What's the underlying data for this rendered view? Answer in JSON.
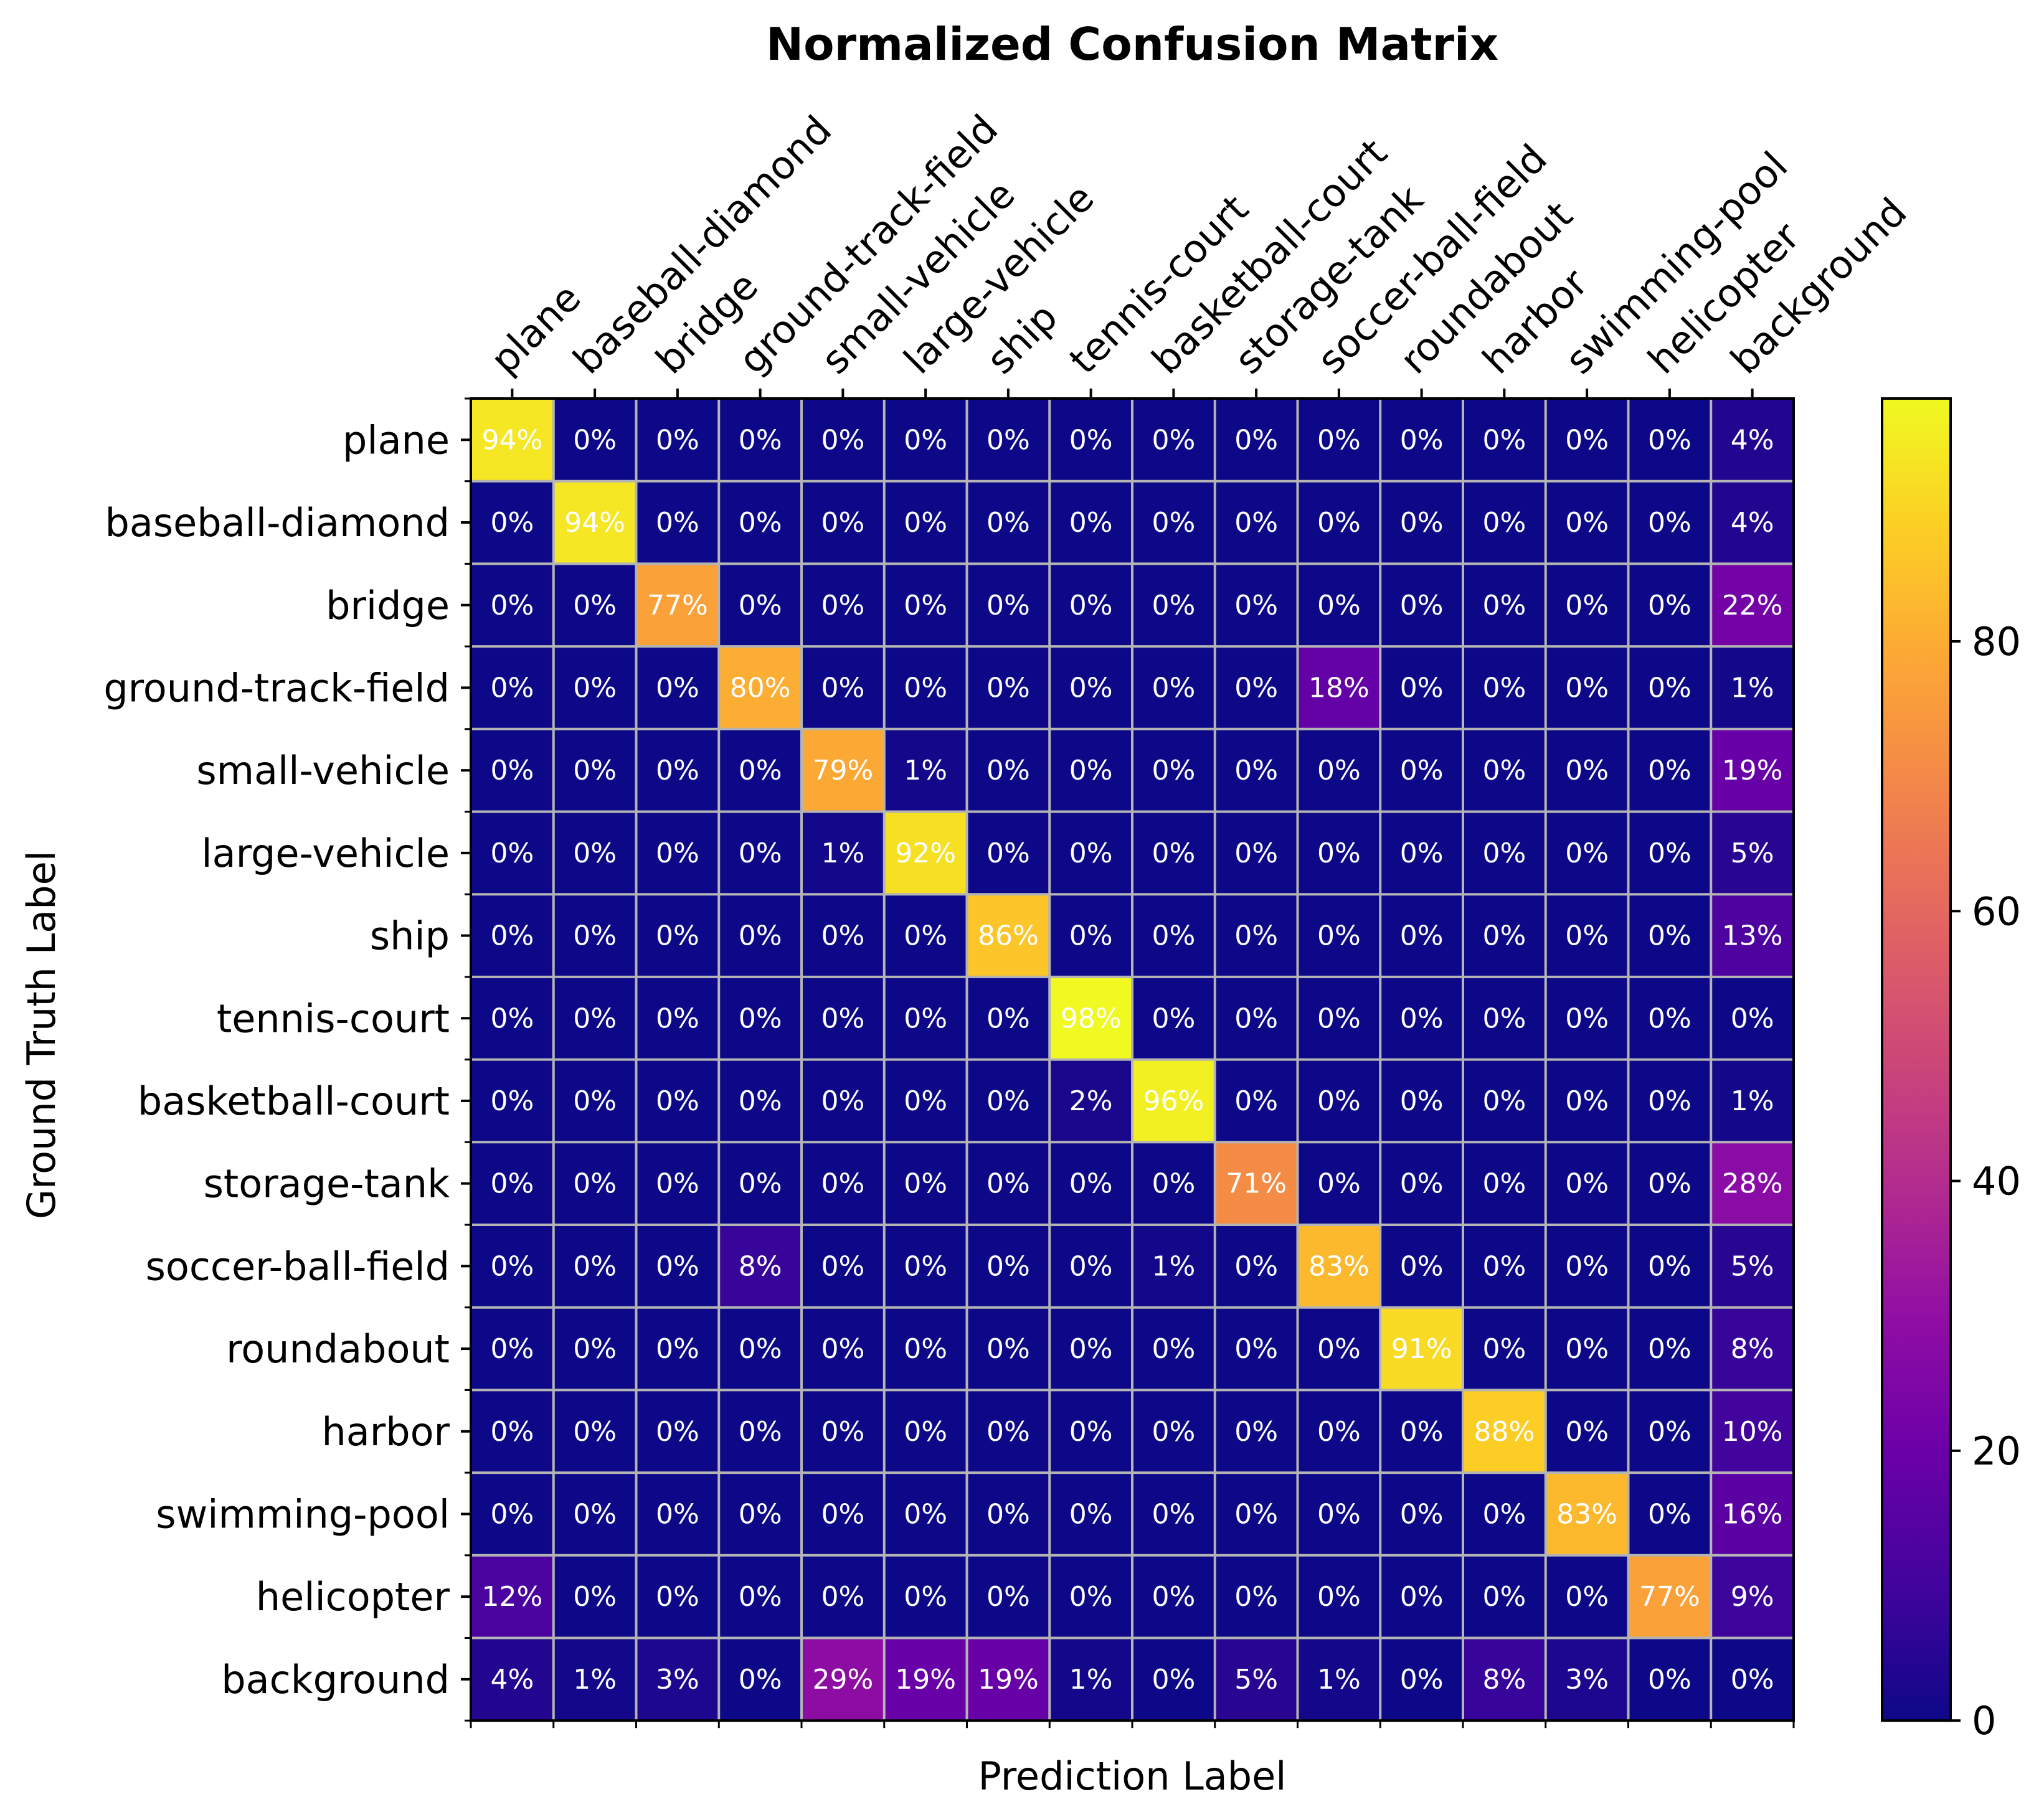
{
  "chart_data": {
    "type": "heatmap",
    "title": "Normalized Confusion Matrix",
    "xlabel": "Prediction Label",
    "ylabel": "Ground Truth Label",
    "x_categories": [
      "plane",
      "baseball-diamond",
      "bridge",
      "ground-track-field",
      "small-vehicle",
      "large-vehicle",
      "ship",
      "tennis-court",
      "basketball-court",
      "storage-tank",
      "soccer-ball-field",
      "roundabout",
      "harbor",
      "swimming-pool",
      "helicopter",
      "background"
    ],
    "y_categories": [
      "plane",
      "baseball-diamond",
      "bridge",
      "ground-track-field",
      "small-vehicle",
      "large-vehicle",
      "ship",
      "tennis-court",
      "basketball-court",
      "storage-tank",
      "soccer-ball-field",
      "roundabout",
      "harbor",
      "swimming-pool",
      "helicopter",
      "background"
    ],
    "values": [
      [
        94,
        0,
        0,
        0,
        0,
        0,
        0,
        0,
        0,
        0,
        0,
        0,
        0,
        0,
        0,
        4
      ],
      [
        0,
        94,
        0,
        0,
        0,
        0,
        0,
        0,
        0,
        0,
        0,
        0,
        0,
        0,
        0,
        4
      ],
      [
        0,
        0,
        77,
        0,
        0,
        0,
        0,
        0,
        0,
        0,
        0,
        0,
        0,
        0,
        0,
        22
      ],
      [
        0,
        0,
        0,
        80,
        0,
        0,
        0,
        0,
        0,
        0,
        18,
        0,
        0,
        0,
        0,
        1
      ],
      [
        0,
        0,
        0,
        0,
        79,
        1,
        0,
        0,
        0,
        0,
        0,
        0,
        0,
        0,
        0,
        19
      ],
      [
        0,
        0,
        0,
        0,
        1,
        92,
        0,
        0,
        0,
        0,
        0,
        0,
        0,
        0,
        0,
        5
      ],
      [
        0,
        0,
        0,
        0,
        0,
        0,
        86,
        0,
        0,
        0,
        0,
        0,
        0,
        0,
        0,
        13
      ],
      [
        0,
        0,
        0,
        0,
        0,
        0,
        0,
        98,
        0,
        0,
        0,
        0,
        0,
        0,
        0,
        0
      ],
      [
        0,
        0,
        0,
        0,
        0,
        0,
        0,
        2,
        96,
        0,
        0,
        0,
        0,
        0,
        0,
        1
      ],
      [
        0,
        0,
        0,
        0,
        0,
        0,
        0,
        0,
        0,
        71,
        0,
        0,
        0,
        0,
        0,
        28
      ],
      [
        0,
        0,
        0,
        8,
        0,
        0,
        0,
        0,
        1,
        0,
        83,
        0,
        0,
        0,
        0,
        5
      ],
      [
        0,
        0,
        0,
        0,
        0,
        0,
        0,
        0,
        0,
        0,
        0,
        91,
        0,
        0,
        0,
        8
      ],
      [
        0,
        0,
        0,
        0,
        0,
        0,
        0,
        0,
        0,
        0,
        0,
        0,
        88,
        0,
        0,
        10
      ],
      [
        0,
        0,
        0,
        0,
        0,
        0,
        0,
        0,
        0,
        0,
        0,
        0,
        0,
        83,
        0,
        16
      ],
      [
        12,
        0,
        0,
        0,
        0,
        0,
        0,
        0,
        0,
        0,
        0,
        0,
        0,
        0,
        77,
        9
      ],
      [
        4,
        1,
        3,
        0,
        29,
        19,
        19,
        1,
        0,
        5,
        1,
        0,
        8,
        3,
        0,
        0
      ]
    ],
    "value_suffix": "%",
    "colorbar": {
      "min": 0,
      "max": 98,
      "ticks": [
        0,
        20,
        40,
        60,
        80
      ]
    },
    "colormap": "plasma",
    "grid": true,
    "gridline_color": "#b4b4b4"
  }
}
